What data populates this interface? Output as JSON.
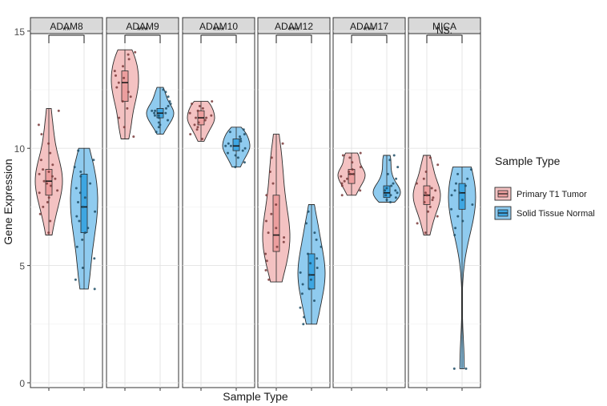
{
  "chart_data": {
    "type": "violin",
    "ylabel": "Gene Expression",
    "xlabel": "Sample Type",
    "ylim": [
      0,
      15
    ],
    "yticks": [
      0,
      5,
      10,
      15
    ],
    "grid": true,
    "legend": {
      "title": "Sample Type",
      "position": "right",
      "entries": [
        {
          "name": "Primary T1 Tumor",
          "fill": "#f4c2c2",
          "box_fill": "#ec9e9e",
          "dot": "#7a3b3b"
        },
        {
          "name": "Solid Tissue Normal",
          "fill": "#8fcbef",
          "box_fill": "#3ea6e2",
          "dot": "#1f4d66"
        }
      ]
    },
    "panels": [
      {
        "gene": "ADAM8",
        "significance": "**",
        "groups": [
          {
            "series": "Primary T1 Tumor",
            "min": 6.3,
            "q1": 8.0,
            "median": 8.6,
            "q3": 9.1,
            "max": 11.7,
            "points": [
              6.4,
              6.9,
              7.2,
              7.5,
              7.7,
              7.9,
              8.1,
              8.2,
              8.4,
              8.5,
              8.6,
              8.7,
              8.8,
              8.9,
              9.0,
              9.1,
              9.3,
              9.5,
              9.8,
              10.2,
              10.6,
              11.0,
              11.6
            ]
          },
          {
            "series": "Solid Tissue Normal",
            "min": 4.0,
            "q1": 6.4,
            "median": 7.5,
            "q3": 8.9,
            "max": 10.0,
            "points": [
              4.0,
              4.4,
              4.9,
              5.3,
              5.8,
              6.1,
              6.4,
              6.6,
              6.9,
              7.1,
              7.3,
              7.5,
              7.7,
              7.9,
              8.1,
              8.3,
              8.5,
              8.8,
              9.0,
              9.2,
              9.5,
              9.9
            ]
          }
        ]
      },
      {
        "gene": "ADAM9",
        "significance": "***",
        "groups": [
          {
            "series": "Primary T1 Tumor",
            "min": 10.4,
            "q1": 12.0,
            "median": 12.8,
            "q3": 13.3,
            "max": 14.2,
            "points": [
              10.5,
              10.9,
              11.3,
              11.7,
              12.0,
              12.2,
              12.4,
              12.6,
              12.8,
              13.0,
              13.1,
              13.3,
              13.5,
              13.8,
              14.0,
              14.1
            ]
          },
          {
            "series": "Solid Tissue Normal",
            "min": 10.6,
            "q1": 11.3,
            "median": 11.5,
            "q3": 11.7,
            "max": 12.6,
            "points": [
              10.7,
              10.9,
              11.0,
              11.1,
              11.2,
              11.3,
              11.4,
              11.4,
              11.5,
              11.5,
              11.6,
              11.6,
              11.7,
              11.8,
              11.9,
              12.0,
              12.2,
              12.4,
              12.5
            ]
          }
        ]
      },
      {
        "gene": "ADAM10",
        "significance": "***",
        "groups": [
          {
            "series": "Primary T1 Tumor",
            "min": 10.3,
            "q1": 11.0,
            "median": 11.3,
            "q3": 11.6,
            "max": 12.0,
            "points": [
              10.4,
              10.6,
              10.8,
              10.9,
              11.0,
              11.1,
              11.2,
              11.3,
              11.3,
              11.4,
              11.5,
              11.6,
              11.7,
              11.8,
              11.9,
              12.0
            ]
          },
          {
            "series": "Solid Tissue Normal",
            "min": 9.2,
            "q1": 9.9,
            "median": 10.1,
            "q3": 10.4,
            "max": 10.9,
            "points": [
              9.2,
              9.4,
              9.6,
              9.7,
              9.8,
              9.9,
              10.0,
              10.1,
              10.1,
              10.2,
              10.3,
              10.4,
              10.5,
              10.6,
              10.7,
              10.8
            ]
          }
        ]
      },
      {
        "gene": "ADAM12",
        "significance": "***",
        "groups": [
          {
            "series": "Primary T1 Tumor",
            "min": 4.3,
            "q1": 5.6,
            "median": 6.3,
            "q3": 8.0,
            "max": 10.6,
            "points": [
              4.4,
              4.8,
              5.2,
              5.5,
              5.8,
              6.0,
              6.2,
              6.4,
              6.6,
              6.9,
              7.2,
              7.6,
              8.0,
              8.5,
              9.0,
              9.6,
              10.2
            ]
          },
          {
            "series": "Solid Tissue Normal",
            "min": 2.5,
            "q1": 4.0,
            "median": 4.6,
            "q3": 5.5,
            "max": 7.6,
            "points": [
              2.5,
              2.8,
              3.2,
              3.5,
              3.8,
              4.0,
              4.2,
              4.4,
              4.6,
              4.7,
              4.9,
              5.1,
              5.3,
              5.5,
              5.8,
              6.1,
              6.4,
              6.8,
              7.3
            ]
          }
        ]
      },
      {
        "gene": "ADAM17",
        "significance": "***",
        "groups": [
          {
            "series": "Primary T1 Tumor",
            "min": 8.0,
            "q1": 8.5,
            "median": 8.9,
            "q3": 9.1,
            "max": 9.8,
            "points": [
              8.0,
              8.2,
              8.4,
              8.5,
              8.6,
              8.7,
              8.8,
              8.9,
              8.9,
              9.0,
              9.1,
              9.2,
              9.4,
              9.6,
              9.7,
              9.8
            ]
          },
          {
            "series": "Solid Tissue Normal",
            "min": 7.7,
            "q1": 7.9,
            "median": 8.1,
            "q3": 8.4,
            "max": 9.7,
            "points": [
              7.7,
              7.8,
              7.9,
              8.0,
              8.0,
              8.1,
              8.2,
              8.2,
              8.3,
              8.4,
              8.5,
              8.7,
              8.9,
              9.2,
              9.5,
              9.7
            ]
          }
        ]
      },
      {
        "gene": "MICA",
        "significance": "NS.",
        "groups": [
          {
            "series": "Primary T1 Tumor",
            "min": 6.3,
            "q1": 7.6,
            "median": 8.0,
            "q3": 8.4,
            "max": 9.7,
            "points": [
              6.4,
              6.8,
              7.1,
              7.3,
              7.5,
              7.7,
              7.8,
              7.9,
              8.0,
              8.1,
              8.2,
              8.3,
              8.5,
              8.7,
              9.0,
              9.3,
              9.6
            ]
          },
          {
            "series": "Solid Tissue Normal",
            "min": 0.6,
            "q1": 7.4,
            "median": 8.1,
            "q3": 8.5,
            "max": 9.2,
            "points": [
              0.6,
              0.6,
              6.3,
              6.6,
              6.9,
              7.1,
              7.4,
              7.6,
              7.8,
              8.0,
              8.1,
              8.2,
              8.4,
              8.5,
              8.7,
              8.9,
              9.1
            ]
          }
        ]
      }
    ]
  }
}
